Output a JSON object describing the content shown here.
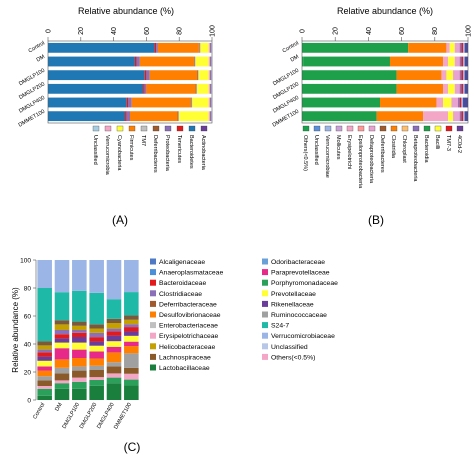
{
  "panels": {
    "a": {
      "label": "(A)"
    },
    "b": {
      "label": "(B)"
    },
    "c": {
      "label": "(C)"
    }
  },
  "chart_data": [
    {
      "type": "bar",
      "orientation": "horizontal",
      "stacked": true,
      "title": "Relative abundance (%)",
      "xlim": [
        0,
        100
      ],
      "xticks": [
        "0",
        "20",
        "40",
        "60",
        "80",
        "100"
      ],
      "categories": [
        "Control",
        "DM",
        "DMGLP100",
        "DMGLP200",
        "DMGLP400",
        "DMMET100"
      ],
      "series": [
        {
          "name": "Bacteroidetes",
          "color": "#1f78b4",
          "values": [
            65,
            53,
            59,
            58,
            48,
            47
          ]
        },
        {
          "name": "Tenericutes",
          "color": "#e31a1c",
          "values": [
            1,
            1,
            1,
            1,
            1,
            1
          ]
        },
        {
          "name": "Proteobacteria",
          "color": "#8b6fb8",
          "values": [
            1,
            2,
            2,
            1,
            2,
            2
          ]
        },
        {
          "name": "Firmicutes",
          "color": "#ff7f00",
          "values": [
            25,
            33,
            29,
            30,
            36,
            29
          ]
        },
        {
          "name": "Deferribacteres",
          "color": "#a05a2c",
          "values": [
            0.5,
            0.5,
            0.5,
            0.5,
            0.5,
            0.5
          ]
        },
        {
          "name": "TM7",
          "color": "#c0c0c0",
          "values": [
            0.5,
            0.5,
            0.5,
            0.5,
            0.5,
            0.5
          ]
        },
        {
          "name": "Cyanobacteria",
          "color": "#ffff33",
          "values": [
            5,
            8,
            6,
            7,
            10,
            18
          ]
        },
        {
          "name": "Verrucomicrobia",
          "color": "#f4a6c6",
          "values": [
            1,
            1,
            1,
            1,
            1,
            1
          ]
        },
        {
          "name": "Actinobacteria",
          "color": "#6a3d9a",
          "values": [
            0.5,
            0.5,
            0.5,
            0.5,
            0.5,
            0.5
          ]
        },
        {
          "name": "Unclassified",
          "color": "#a6cee3",
          "values": [
            0.5,
            0.5,
            0.5,
            0.5,
            0.5,
            0.5
          ]
        }
      ],
      "legend": {
        "placement": "bottom",
        "items": [
          {
            "name": "Unclassified",
            "color": "#a6cee3"
          },
          {
            "name": "Verrucomicrobia",
            "color": "#f4a6c6"
          },
          {
            "name": "Cyanobacteria",
            "color": "#ffff33"
          },
          {
            "name": "Firmicutes",
            "color": "#ff7f00"
          },
          {
            "name": "TM7",
            "color": "#c0c0c0"
          },
          {
            "name": "Deferribacteres",
            "color": "#a05a2c"
          },
          {
            "name": "Proteobacteria",
            "color": "#8b6fb8"
          },
          {
            "name": "Tenericutes",
            "color": "#e31a1c"
          },
          {
            "name": "Bacteroidetes",
            "color": "#1f78b4"
          },
          {
            "name": "Actinobacteria",
            "color": "#6a3d9a"
          }
        ]
      }
    },
    {
      "type": "bar",
      "orientation": "horizontal",
      "stacked": true,
      "title": "Relative abundance (%)",
      "xlim": [
        0,
        100
      ],
      "xticks": [
        "0",
        "20",
        "40",
        "60",
        "80",
        "100"
      ],
      "categories": [
        "Control",
        "DM",
        "DMGLP100",
        "DMGLP200",
        "DMGLP400",
        "DMMET100"
      ],
      "series": [
        {
          "name": "Others(<0.5%)",
          "color": "#17a34a",
          "values": [
            0,
            1,
            0,
            0,
            0,
            0
          ]
        },
        {
          "name": "Bacteroidia",
          "color": "#1e9f4a",
          "values": [
            64,
            52,
            57,
            57,
            47,
            45
          ]
        },
        {
          "name": "Clostridia",
          "color": "#ff7f00",
          "values": [
            23,
            32,
            27,
            28,
            34,
            28
          ]
        },
        {
          "name": "Erysipelotrichi",
          "color": "#f4a6c6",
          "values": [
            2,
            3,
            3,
            3,
            4,
            15
          ]
        },
        {
          "name": "Bacilli",
          "color": "#ffff33",
          "values": [
            3,
            4,
            4,
            4,
            5,
            3
          ]
        },
        {
          "name": "Deltaproteobacteria",
          "color": "#e9a3d0",
          "values": [
            3,
            3,
            4,
            3,
            4,
            4
          ]
        },
        {
          "name": "Betaproteobacteria",
          "color": "#8b6fb8",
          "values": [
            1,
            1,
            1,
            1,
            1,
            1
          ]
        },
        {
          "name": "Mollicutes",
          "color": "#e31a1c",
          "values": [
            1,
            1,
            1,
            1,
            1,
            1
          ]
        },
        {
          "name": "Verrucomicrobiae",
          "color": "#9ab5e6",
          "values": [
            1,
            1,
            1,
            1,
            1,
            1
          ]
        },
        {
          "name": "Unclassified",
          "color": "#4b4b9b",
          "values": [
            2,
            2,
            2,
            2,
            3,
            2
          ]
        }
      ],
      "legend": {
        "placement": "bottom",
        "items": [
          {
            "name": "Others(<0.5%)",
            "color": "#17a34a"
          },
          {
            "name": "Unclassified",
            "color": "#5b8fd9"
          },
          {
            "name": "Verrucomicrobiae",
            "color": "#9ab5e6"
          },
          {
            "name": "Mollicutes",
            "color": "#c8a2d6"
          },
          {
            "name": "Erysipelotrichi",
            "color": "#f4a6c6"
          },
          {
            "name": "Epsilonproteobacteria",
            "color": "#ff9896"
          },
          {
            "name": "Deltaproteobacteria",
            "color": "#e9a3d0"
          },
          {
            "name": "Deferribacteres",
            "color": "#a05a2c"
          },
          {
            "name": "Clostridia",
            "color": "#ff7f00"
          },
          {
            "name": "Chloroplast",
            "color": "#fdbf6f"
          },
          {
            "name": "Betaproteobacteria",
            "color": "#8b6fb8"
          },
          {
            "name": "Bacteroidia",
            "color": "#1e9f4a"
          },
          {
            "name": "Bacilli",
            "color": "#ffff33"
          },
          {
            "name": "TM7-3",
            "color": "#e31a1c"
          },
          {
            "name": "4C0d-2",
            "color": "#6a3d9a"
          }
        ]
      }
    },
    {
      "type": "bar",
      "orientation": "vertical",
      "stacked": true,
      "ylabel": "Relative abundance (%)",
      "ylim": [
        0,
        100
      ],
      "yticks": [
        "0",
        "20",
        "40",
        "60",
        "80",
        "100"
      ],
      "categories": [
        "Control",
        "DM",
        "DMGLP100",
        "DMGLP200",
        "DMGLP400",
        "DMMET100"
      ],
      "series": [
        {
          "name": "Lactobacillaceae",
          "color": "#1a7f3c",
          "values": [
            3,
            8,
            8,
            10,
            12,
            10
          ]
        },
        {
          "name": "Porphyromonadaceae",
          "color": "#2aa05a",
          "values": [
            5,
            4,
            5,
            4,
            4,
            4
          ]
        },
        {
          "name": "Erysipelotrichaceae",
          "color": "#f4a6c6",
          "values": [
            2,
            2,
            3,
            2,
            3,
            4
          ]
        },
        {
          "name": "Lachnospiraceae",
          "color": "#8b5a2b",
          "values": [
            4,
            5,
            5,
            5,
            5,
            4
          ]
        },
        {
          "name": "Ruminococcaceae",
          "color": "#a0a0a0",
          "values": [
            3,
            4,
            3,
            3,
            3,
            10
          ]
        },
        {
          "name": "Desulfovibrionaceae",
          "color": "#ff7f00",
          "values": [
            4,
            6,
            6,
            5,
            7,
            5
          ]
        },
        {
          "name": "Paraprevotellaceae",
          "color": "#e7298a",
          "values": [
            3,
            8,
            6,
            5,
            4,
            3
          ]
        },
        {
          "name": "Prevotellaceae",
          "color": "#ffff33",
          "values": [
            4,
            4,
            5,
            4,
            4,
            4
          ]
        },
        {
          "name": "Rikenellaceae",
          "color": "#6a3d9a",
          "values": [
            3,
            3,
            4,
            3,
            4,
            3
          ]
        },
        {
          "name": "Bacteroidaceae",
          "color": "#e31a1c",
          "values": [
            3,
            3,
            3,
            3,
            3,
            3
          ]
        },
        {
          "name": "Clostridiaceae",
          "color": "#8b6fb8",
          "values": [
            2,
            3,
            2,
            3,
            2,
            2
          ]
        },
        {
          "name": "Helicobacteraceae",
          "color": "#c4a000",
          "values": [
            3,
            4,
            3,
            3,
            4,
            3
          ]
        },
        {
          "name": "Odoribacteraceae",
          "color": "#7a5a3a",
          "values": [
            3,
            3,
            3,
            3,
            3,
            3
          ]
        },
        {
          "name": "S24-7",
          "color": "#1fb9a8",
          "values": [
            38,
            20,
            22,
            22,
            14,
            16
          ]
        },
        {
          "name": "Unclassified",
          "color": "#9ab5e6",
          "values": [
            20,
            23,
            22,
            23,
            28,
            22
          ]
        }
      ],
      "legend": {
        "placement": "top-right",
        "items": [
          {
            "name": "Alcaligenaceae",
            "color": "#4e79c4"
          },
          {
            "name": "Odoribacteraceae",
            "color": "#6aa0d8"
          },
          {
            "name": "Anaeroplasmataceae",
            "color": "#4a8fd8"
          },
          {
            "name": "Paraprevotellaceae",
            "color": "#e7298a"
          },
          {
            "name": "Bacteroidaceae",
            "color": "#e31a1c"
          },
          {
            "name": "Porphyromonadaceae",
            "color": "#2aa05a"
          },
          {
            "name": "Clostridiaceae",
            "color": "#8b6fb8"
          },
          {
            "name": "Prevotellaceae",
            "color": "#ffff33"
          },
          {
            "name": "Deferribacteraceae",
            "color": "#a05a2c"
          },
          {
            "name": "Rikenellaceae",
            "color": "#6a3d9a"
          },
          {
            "name": "Desulfovibrionaceae",
            "color": "#ff7f00"
          },
          {
            "name": "Ruminococcaceae",
            "color": "#a0a0a0"
          },
          {
            "name": "Enterobacteriaceae",
            "color": "#c0c0c0"
          },
          {
            "name": "S24-7",
            "color": "#1fb9a8"
          },
          {
            "name": "Erysipelotrichaceae",
            "color": "#f4a6c6"
          },
          {
            "name": "Verrucomicrobiaceae",
            "color": "#9ab5e6"
          },
          {
            "name": "Helicobacteraceae",
            "color": "#c4a000"
          },
          {
            "name": "Unclassified",
            "color": "#b8c7e8"
          },
          {
            "name": "Lachnospiraceae",
            "color": "#8b5a2b"
          },
          {
            "name": "Others(<0.5%)",
            "color": "#f4a6c6"
          },
          {
            "name": "Lactobacillaceae",
            "color": "#1a7f3c"
          }
        ]
      }
    }
  ]
}
